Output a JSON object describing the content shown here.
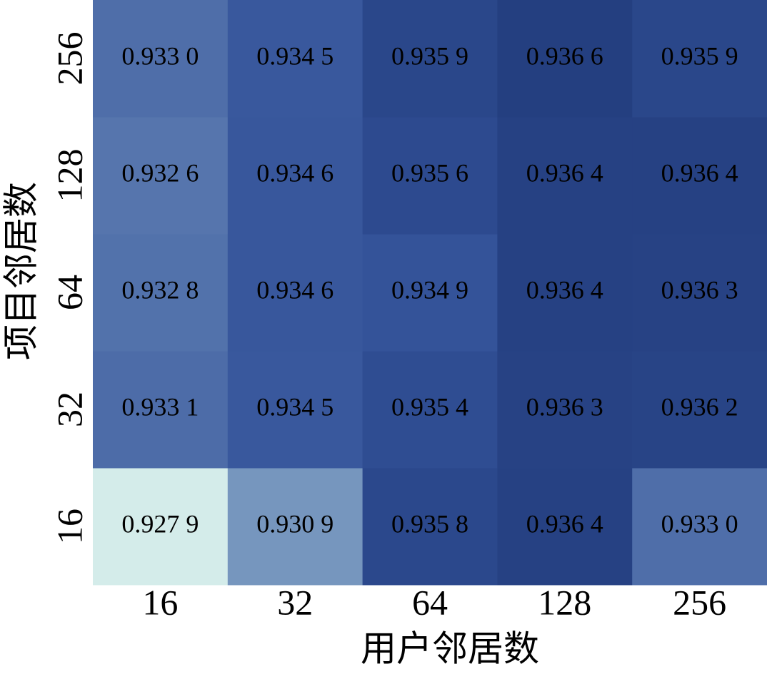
{
  "chart_data": {
    "type": "heatmap",
    "xlabel": "用户邻居数",
    "ylabel": "项目邻居数",
    "x": [
      16,
      32,
      64,
      128,
      256
    ],
    "y": [
      16,
      32,
      64,
      128,
      256
    ],
    "values": [
      [
        0.9279,
        0.9309,
        0.9358,
        0.9364,
        0.933
      ],
      [
        0.9331,
        0.9345,
        0.9354,
        0.9363,
        0.9362
      ],
      [
        0.9328,
        0.9346,
        0.9349,
        0.9364,
        0.9363
      ],
      [
        0.9326,
        0.9346,
        0.9356,
        0.9364,
        0.9364
      ],
      [
        0.933,
        0.9345,
        0.9359,
        0.9366,
        0.9359
      ]
    ],
    "value_labels": [
      [
        "0.927 9",
        "0.930 9",
        "0.935 8",
        "0.936 4",
        "0.933 0"
      ],
      [
        "0.933 1",
        "0.934 5",
        "0.935 4",
        "0.936 3",
        "0.936 2"
      ],
      [
        "0.932 8",
        "0.934 6",
        "0.934 9",
        "0.936 4",
        "0.936 3"
      ],
      [
        "0.932 6",
        "0.934 6",
        "0.935 6",
        "0.936 4",
        "0.936 4"
      ],
      [
        "0.933 0",
        "0.934 5",
        "0.935 9",
        "0.936 6",
        "0.935 9"
      ]
    ],
    "colorscale": [
      "#d4ecea",
      "#97b4cf",
      "#6a8ab8",
      "#4d6ca8",
      "#34539a",
      "#243f80"
    ]
  }
}
